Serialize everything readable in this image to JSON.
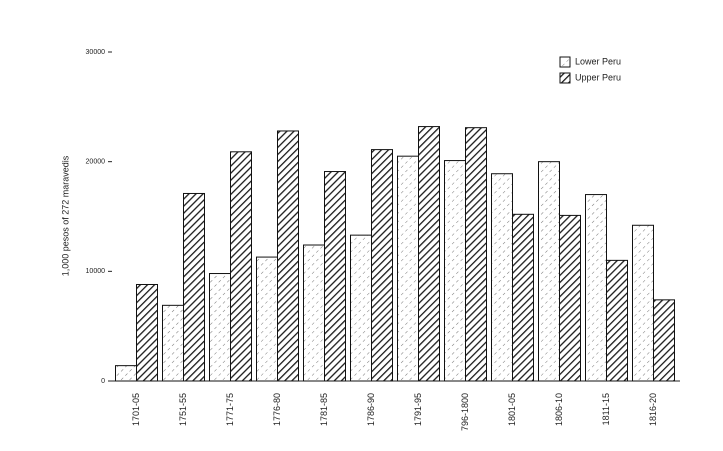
{
  "chart_data": {
    "type": "bar",
    "y_label": "1,000 pesos of 272 maravedis",
    "categories": [
      "1701-05",
      "1751-55",
      "1771-75",
      "1776-80",
      "1781-85",
      "1786-90",
      "1791-95",
      "796-1800",
      "1801-05",
      "1806-10",
      "1811-15",
      "1816-20"
    ],
    "series": [
      {
        "name": "Lower Peru",
        "color": "#777777",
        "values": [
          1400,
          6900,
          9800,
          11300,
          12400,
          13300,
          20500,
          20100,
          18900,
          20000,
          17000,
          14200
        ]
      },
      {
        "name": "Upper Peru",
        "color": "#1a1a1a",
        "values": [
          8800,
          17100,
          20900,
          22800,
          19100,
          21100,
          23200,
          23100,
          15200,
          15100,
          11000,
          7400
        ]
      }
    ],
    "ylim": [
      0,
      30000
    ],
    "yticks": [
      0,
      10000,
      20000,
      30000
    ],
    "legend": "top-right"
  }
}
